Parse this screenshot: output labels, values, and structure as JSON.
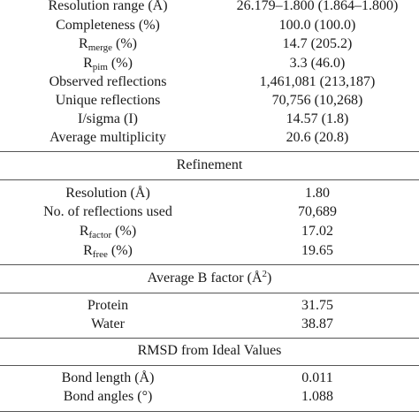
{
  "data_collection": {
    "rows": [
      {
        "label": "Resolution range (Å)",
        "value": "26.179–1.800 (1.864–1.800)"
      },
      {
        "label": "Completeness (%)",
        "value": "100.0 (100.0)"
      },
      {
        "label_main": "R",
        "label_sub": "merge",
        "label_rest": " (%)",
        "value": "14.7 (205.2)"
      },
      {
        "label_main": "R",
        "label_sub": "pim",
        "label_rest": " (%)",
        "value": "3.3 (46.0)"
      },
      {
        "label": "Observed reflections",
        "value": "1,461,081 (213,187)"
      },
      {
        "label": "Unique reflections",
        "value": "70,756 (10,268)"
      },
      {
        "label": "I/sigma (I)",
        "value": "14.57 (1.8)"
      },
      {
        "label": "Average multiplicity",
        "value": "20.6 (20.8)"
      }
    ]
  },
  "refinement": {
    "header": "Refinement",
    "rows": [
      {
        "label": "Resolution (Å)",
        "value": "1.80"
      },
      {
        "label": "No. of reflections used",
        "value": "70,689"
      },
      {
        "label_main": "R",
        "label_sub": "factor",
        "label_rest": " (%)",
        "value": "17.02"
      },
      {
        "label_main": "R",
        "label_sub": "free",
        "label_rest": " (%)",
        "value": "19.65"
      }
    ]
  },
  "b_factor": {
    "header_main": "Average B factor (Å",
    "header_sup": "2",
    "header_rest": ")",
    "rows": [
      {
        "label": "Protein",
        "value": "31.75"
      },
      {
        "label": "Water",
        "value": "38.87"
      }
    ]
  },
  "rmsd": {
    "header": "RMSD from Ideal Values",
    "rows": [
      {
        "label": "Bond length (Å)",
        "value": "0.011"
      },
      {
        "label": "Bond angles (°)",
        "value": "1.088"
      }
    ]
  }
}
